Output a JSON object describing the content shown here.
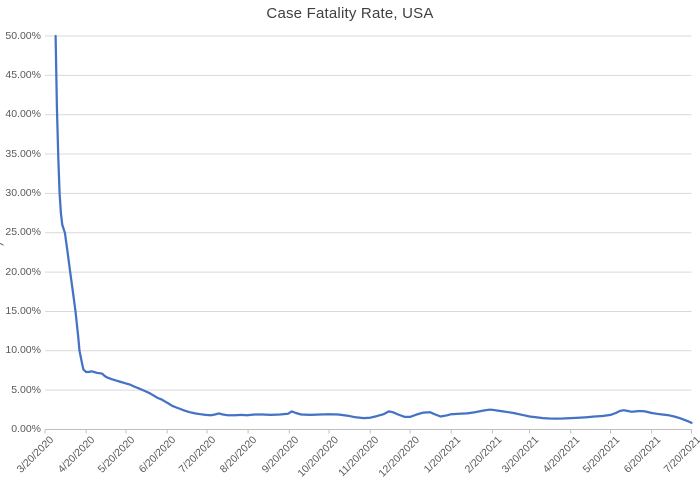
{
  "chart_data": {
    "type": "line",
    "title": "Case Fatality Rate, USA",
    "legend": "none",
    "grid": "horizontal",
    "ylim": [
      0,
      50
    ],
    "y_tick_step": 5,
    "y_axis_title_clipped": ")",
    "y_ticks": [
      {
        "value": 0,
        "label": "0.00%"
      },
      {
        "value": 5,
        "label": "5.00%"
      },
      {
        "value": 10,
        "label": "10.00%"
      },
      {
        "value": 15,
        "label": "15.00%"
      },
      {
        "value": 20,
        "label": "20.00%"
      },
      {
        "value": 25,
        "label": "25.00%"
      },
      {
        "value": 30,
        "label": "30.00%"
      },
      {
        "value": 35,
        "label": "35.00%"
      },
      {
        "value": 40,
        "label": "40.00%"
      },
      {
        "value": 45,
        "label": "45.00%"
      },
      {
        "value": 50,
        "label": "50.00%"
      }
    ],
    "x_range_days": [
      0,
      487
    ],
    "x_ticks": [
      {
        "day": 0,
        "label": "3/20/2020"
      },
      {
        "day": 31,
        "label": "4/20/2020"
      },
      {
        "day": 61,
        "label": "5/20/2020"
      },
      {
        "day": 92,
        "label": "6/20/2020"
      },
      {
        "day": 122,
        "label": "7/20/2020"
      },
      {
        "day": 153,
        "label": "8/20/2020"
      },
      {
        "day": 184,
        "label": "9/20/2020"
      },
      {
        "day": 214,
        "label": "10/20/2020"
      },
      {
        "day": 245,
        "label": "11/20/2020"
      },
      {
        "day": 275,
        "label": "12/20/2020"
      },
      {
        "day": 306,
        "label": "1/20/2021"
      },
      {
        "day": 337,
        "label": "2/20/2021"
      },
      {
        "day": 365,
        "label": "3/20/2021"
      },
      {
        "day": 396,
        "label": "4/20/2021"
      },
      {
        "day": 426,
        "label": "5/20/2021"
      },
      {
        "day": 457,
        "label": "6/20/2021"
      },
      {
        "day": 487,
        "label": "7/20/2021"
      }
    ],
    "series": [
      {
        "name": "Case Fatality Rate",
        "color": "#4472C4",
        "points_day_value_pct": [
          [
            8,
            50
          ],
          [
            9,
            41
          ],
          [
            10,
            34.5
          ],
          [
            11,
            30
          ],
          [
            12,
            27.5
          ],
          [
            13,
            26
          ],
          [
            15,
            25
          ],
          [
            17,
            22.5
          ],
          [
            19,
            20
          ],
          [
            21,
            17.5
          ],
          [
            23,
            15
          ],
          [
            25,
            11.8
          ],
          [
            26,
            10
          ],
          [
            27,
            9.2
          ],
          [
            28,
            8.3
          ],
          [
            29,
            7.6
          ],
          [
            31,
            7.3
          ],
          [
            33,
            7.3
          ],
          [
            35,
            7.4
          ],
          [
            37,
            7.3
          ],
          [
            39,
            7.2
          ],
          [
            41,
            7.15
          ],
          [
            43,
            7.1
          ],
          [
            45,
            6.8
          ],
          [
            47,
            6.6
          ],
          [
            50,
            6.4
          ],
          [
            53,
            6.25
          ],
          [
            56,
            6.1
          ],
          [
            60,
            5.9
          ],
          [
            64,
            5.7
          ],
          [
            68,
            5.4
          ],
          [
            71,
            5.2
          ],
          [
            75,
            4.9
          ],
          [
            79,
            4.6
          ],
          [
            82,
            4.3
          ],
          [
            85,
            4.0
          ],
          [
            88,
            3.8
          ],
          [
            90,
            3.6
          ],
          [
            93,
            3.3
          ],
          [
            96,
            3.0
          ],
          [
            99,
            2.8
          ],
          [
            102,
            2.6
          ],
          [
            105,
            2.4
          ],
          [
            109,
            2.2
          ],
          [
            113,
            2.05
          ],
          [
            117,
            1.95
          ],
          [
            121,
            1.85
          ],
          [
            125,
            1.8
          ],
          [
            128,
            1.9
          ],
          [
            131,
            2.05
          ],
          [
            134,
            1.9
          ],
          [
            138,
            1.8
          ],
          [
            143,
            1.8
          ],
          [
            148,
            1.85
          ],
          [
            152,
            1.8
          ],
          [
            158,
            1.9
          ],
          [
            164,
            1.9
          ],
          [
            170,
            1.85
          ],
          [
            177,
            1.9
          ],
          [
            183,
            2.0
          ],
          [
            186,
            2.3
          ],
          [
            189,
            2.1
          ],
          [
            193,
            1.9
          ],
          [
            200,
            1.85
          ],
          [
            207,
            1.9
          ],
          [
            214,
            1.95
          ],
          [
            221,
            1.9
          ],
          [
            228,
            1.75
          ],
          [
            234,
            1.55
          ],
          [
            240,
            1.45
          ],
          [
            245,
            1.5
          ],
          [
            250,
            1.7
          ],
          [
            255,
            1.95
          ],
          [
            259,
            2.3
          ],
          [
            262,
            2.2
          ],
          [
            266,
            1.9
          ],
          [
            271,
            1.6
          ],
          [
            275,
            1.6
          ],
          [
            280,
            1.9
          ],
          [
            285,
            2.15
          ],
          [
            290,
            2.2
          ],
          [
            294,
            1.9
          ],
          [
            298,
            1.65
          ],
          [
            303,
            1.8
          ],
          [
            306,
            1.95
          ],
          [
            312,
            2.0
          ],
          [
            318,
            2.05
          ],
          [
            324,
            2.2
          ],
          [
            330,
            2.4
          ],
          [
            334,
            2.5
          ],
          [
            337,
            2.5
          ],
          [
            341,
            2.4
          ],
          [
            345,
            2.3
          ],
          [
            349,
            2.2
          ],
          [
            353,
            2.1
          ],
          [
            357,
            1.95
          ],
          [
            361,
            1.8
          ],
          [
            365,
            1.65
          ],
          [
            370,
            1.55
          ],
          [
            375,
            1.45
          ],
          [
            380,
            1.4
          ],
          [
            385,
            1.38
          ],
          [
            390,
            1.4
          ],
          [
            396,
            1.45
          ],
          [
            402,
            1.5
          ],
          [
            408,
            1.55
          ],
          [
            414,
            1.65
          ],
          [
            420,
            1.72
          ],
          [
            426,
            1.85
          ],
          [
            430,
            2.1
          ],
          [
            433,
            2.35
          ],
          [
            436,
            2.45
          ],
          [
            439,
            2.35
          ],
          [
            442,
            2.25
          ],
          [
            445,
            2.3
          ],
          [
            448,
            2.35
          ],
          [
            452,
            2.3
          ],
          [
            457,
            2.1
          ],
          [
            461,
            2.0
          ],
          [
            465,
            1.9
          ],
          [
            470,
            1.8
          ],
          [
            474,
            1.65
          ],
          [
            478,
            1.45
          ],
          [
            482,
            1.2
          ],
          [
            485,
            1.0
          ],
          [
            487,
            0.85
          ]
        ]
      }
    ],
    "colors": {
      "line": "#4472C4",
      "gridline": "#D9D9D9",
      "axis": "#BFBFBF",
      "tick_label": "#595959",
      "title": "#404040",
      "background": "#FFFFFF"
    }
  }
}
